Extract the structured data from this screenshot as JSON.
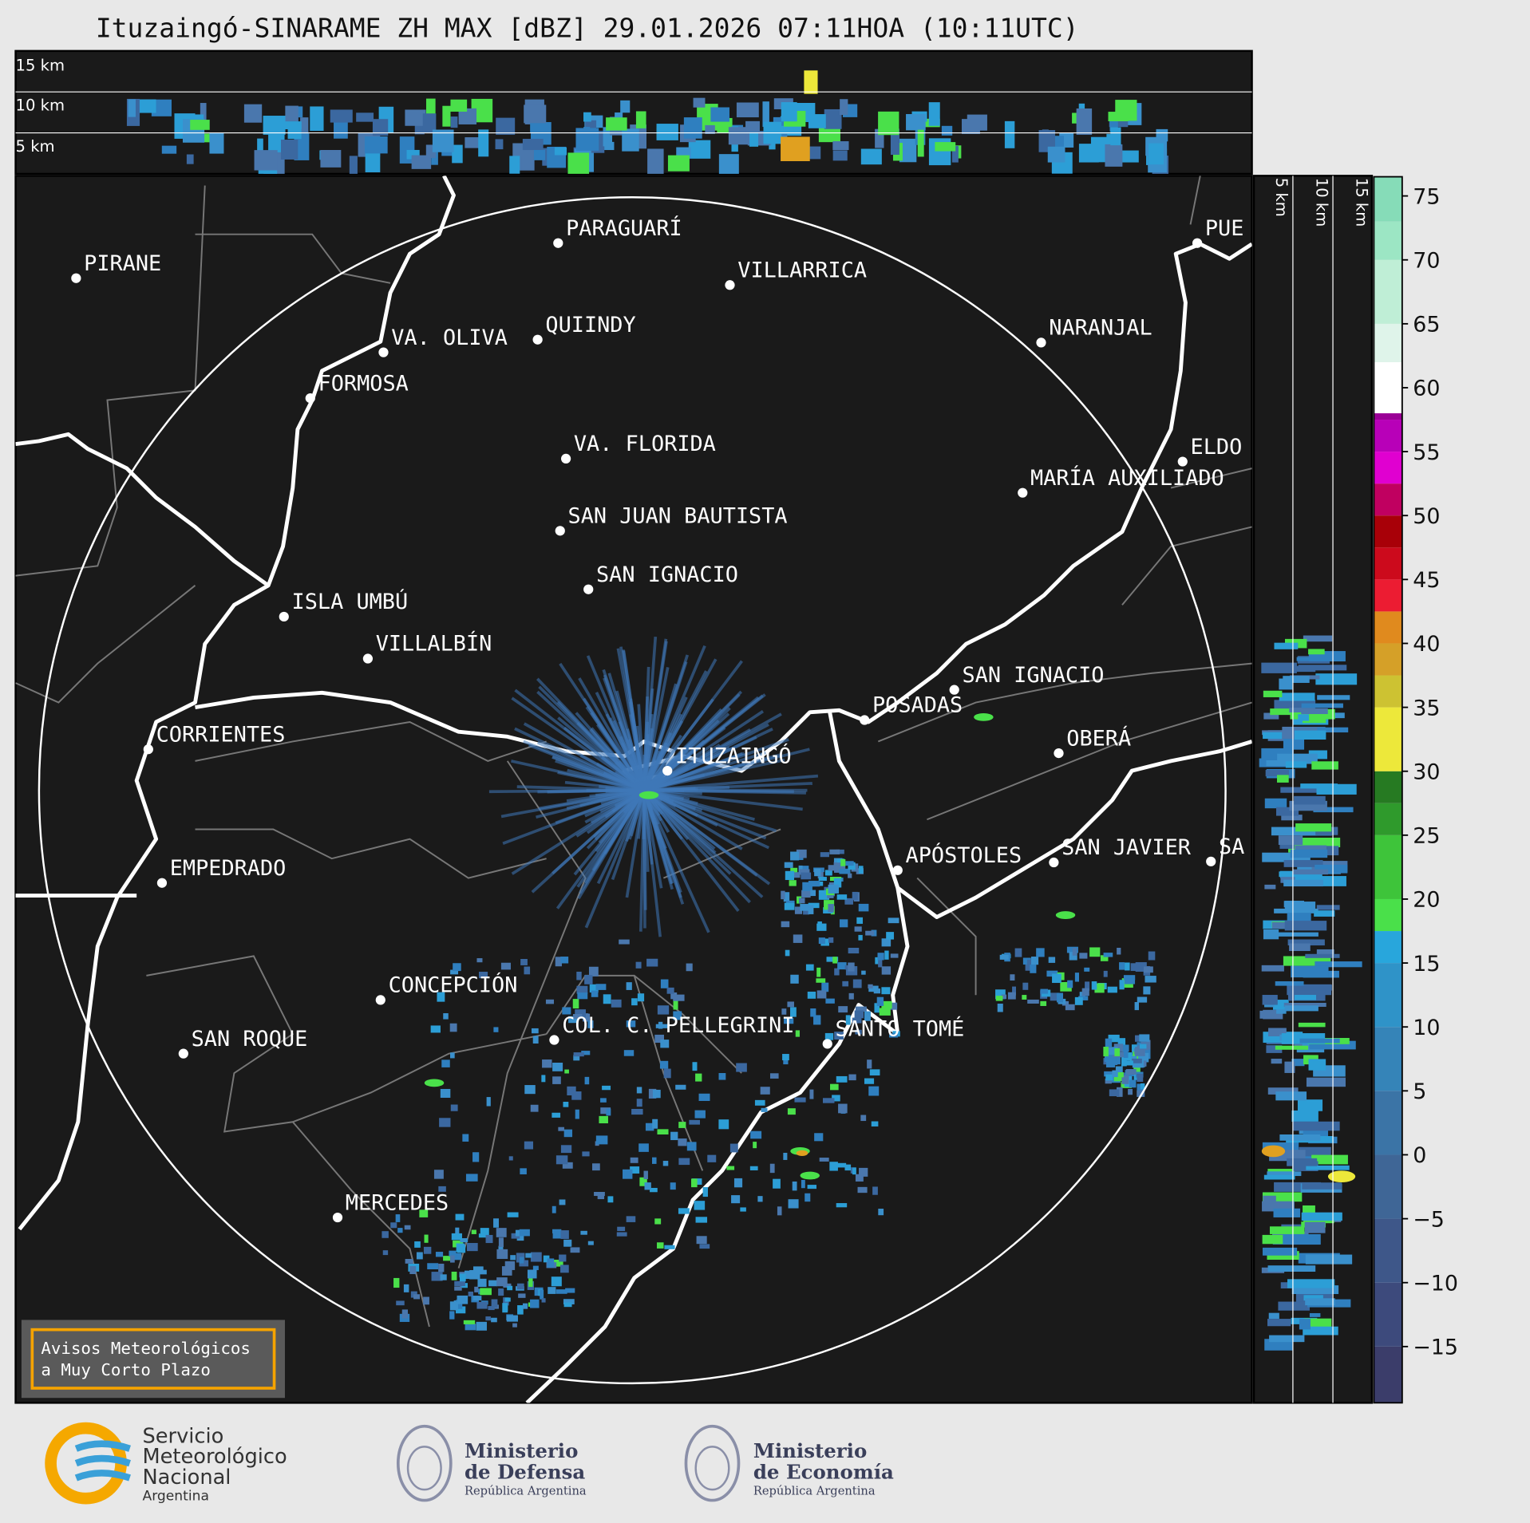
{
  "title": "Ituzaingó-SINARAME ZH MAX [dBZ] 29.01.2026 07:11HOA (10:11UTC)",
  "top_panel": {
    "height_labels": [
      "15 km",
      "10 km",
      "5 km"
    ]
  },
  "side_panel": {
    "height_labels": [
      "5 km",
      "10 km",
      "15 km"
    ]
  },
  "cities": [
    "PIRANE",
    "PARAGUARÍ",
    "VILLARRICA",
    "VA. OLIVA",
    "QUIINDY",
    "FORMOSA",
    "NARANJAL",
    "VA. FLORIDA",
    "ELDO",
    "MARÍA AUXILIADO",
    "SAN JUAN BAUTISTA",
    "SAN IGNACIO",
    "ISLA UMBÚ",
    "VILLALBÍN",
    "SAN IGNACIO",
    "POSADAS",
    "CORRIENTES",
    "ITUZAINGÓ",
    "OBERÁ",
    "EMPEDRADO",
    "APÓSTOLES",
    "SAN JAVIER",
    "SA",
    "CONCEPCIÓN",
    "COL. C. PELLEGRINI",
    "SANTO TOMÉ",
    "SAN ROQUE",
    "MERCEDES",
    "PUE"
  ],
  "warning_box": [
    "Avisos Meteorológicos",
    "a Muy Corto Plazo"
  ],
  "colorbar": {
    "ylim": [
      -19.4,
      76.5
    ],
    "ticks": [
      75,
      70,
      65,
      60,
      55,
      50,
      45,
      40,
      35,
      30,
      25,
      20,
      15,
      10,
      5,
      0,
      {
        "value": -5,
        "label": "−5"
      },
      {
        "value": -10,
        "label": "−10"
      },
      {
        "value": -15,
        "label": "−15"
      }
    ],
    "segments": [
      {
        "from": -19.4,
        "color": "#3b3d6a"
      },
      {
        "from": -15,
        "color": "#3d4a7c"
      },
      {
        "from": -10,
        "color": "#3e5789"
      },
      {
        "from": -5,
        "color": "#3f6696"
      },
      {
        "from": 0,
        "color": "#3b74a6"
      },
      {
        "from": 5,
        "color": "#3584b8"
      },
      {
        "from": 10,
        "color": "#2f93c8"
      },
      {
        "from": 15,
        "color": "#28a6dc"
      },
      {
        "from": 17.5,
        "color": "#4ae04a"
      },
      {
        "from": 20,
        "color": "#3ec43a"
      },
      {
        "from": 25,
        "color": "#2f9a2c"
      },
      {
        "from": 27.5,
        "color": "#267a22"
      },
      {
        "from": 30,
        "color": "#ede83a"
      },
      {
        "from": 35,
        "color": "#cdc232"
      },
      {
        "from": 37.5,
        "color": "#d5a028"
      },
      {
        "from": 40,
        "color": "#e08a1e"
      },
      {
        "from": 42.5,
        "color": "#ec1c32"
      },
      {
        "from": 45,
        "color": "#cc0a1c"
      },
      {
        "from": 47.5,
        "color": "#a80008"
      },
      {
        "from": 50,
        "color": "#c00060"
      },
      {
        "from": 52.5,
        "color": "#e000d0"
      },
      {
        "from": 55,
        "color": "#b800b8"
      },
      {
        "from": 57.5,
        "color": "#9a0096"
      },
      {
        "from": 58,
        "color": "#ffffff"
      },
      {
        "from": 62,
        "color": "#dff4ea"
      },
      {
        "from": 65,
        "color": "#bfeed6"
      },
      {
        "from": 70,
        "color": "#9ce6c4"
      },
      {
        "from": 73,
        "color": "#86dcb8"
      }
    ]
  },
  "logos": {
    "smn": [
      "Servicio",
      "Meteorológico",
      "Nacional",
      "Argentina"
    ],
    "defensa": [
      "Ministerio",
      "de Defensa",
      "República Argentina"
    ],
    "economia": [
      "Ministerio",
      "de Economía",
      "República Argentina"
    ]
  }
}
